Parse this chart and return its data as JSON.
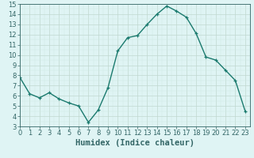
{
  "x": [
    0,
    1,
    2,
    3,
    4,
    5,
    6,
    7,
    8,
    9,
    10,
    11,
    12,
    13,
    14,
    15,
    16,
    17,
    18,
    19,
    20,
    21,
    22,
    23
  ],
  "y": [
    7.8,
    6.2,
    5.8,
    6.3,
    5.7,
    5.3,
    5.0,
    3.4,
    4.6,
    6.8,
    10.4,
    11.7,
    11.9,
    13.0,
    14.0,
    14.8,
    14.3,
    13.7,
    12.1,
    9.8,
    9.5,
    8.5,
    7.5,
    4.5
  ],
  "xlim": [
    0,
    23
  ],
  "ylim": [
    3,
    15
  ],
  "yticks": [
    3,
    4,
    5,
    6,
    7,
    8,
    9,
    10,
    11,
    12,
    13,
    14,
    15
  ],
  "xticks": [
    0,
    1,
    2,
    3,
    4,
    5,
    6,
    7,
    8,
    9,
    10,
    11,
    12,
    13,
    14,
    15,
    16,
    17,
    18,
    19,
    20,
    21,
    22,
    23
  ],
  "xlabel": "Humidex (Indice chaleur)",
  "line_color": "#1a7a6e",
  "marker": "+",
  "bg_color": "#dff4f4",
  "grid_major_color": "#c0d8d0",
  "grid_minor_color": "#d0eae4",
  "axis_color": "#336666",
  "xlabel_fontsize": 7.5,
  "tick_fontsize": 6,
  "linewidth": 1.0,
  "title": ""
}
